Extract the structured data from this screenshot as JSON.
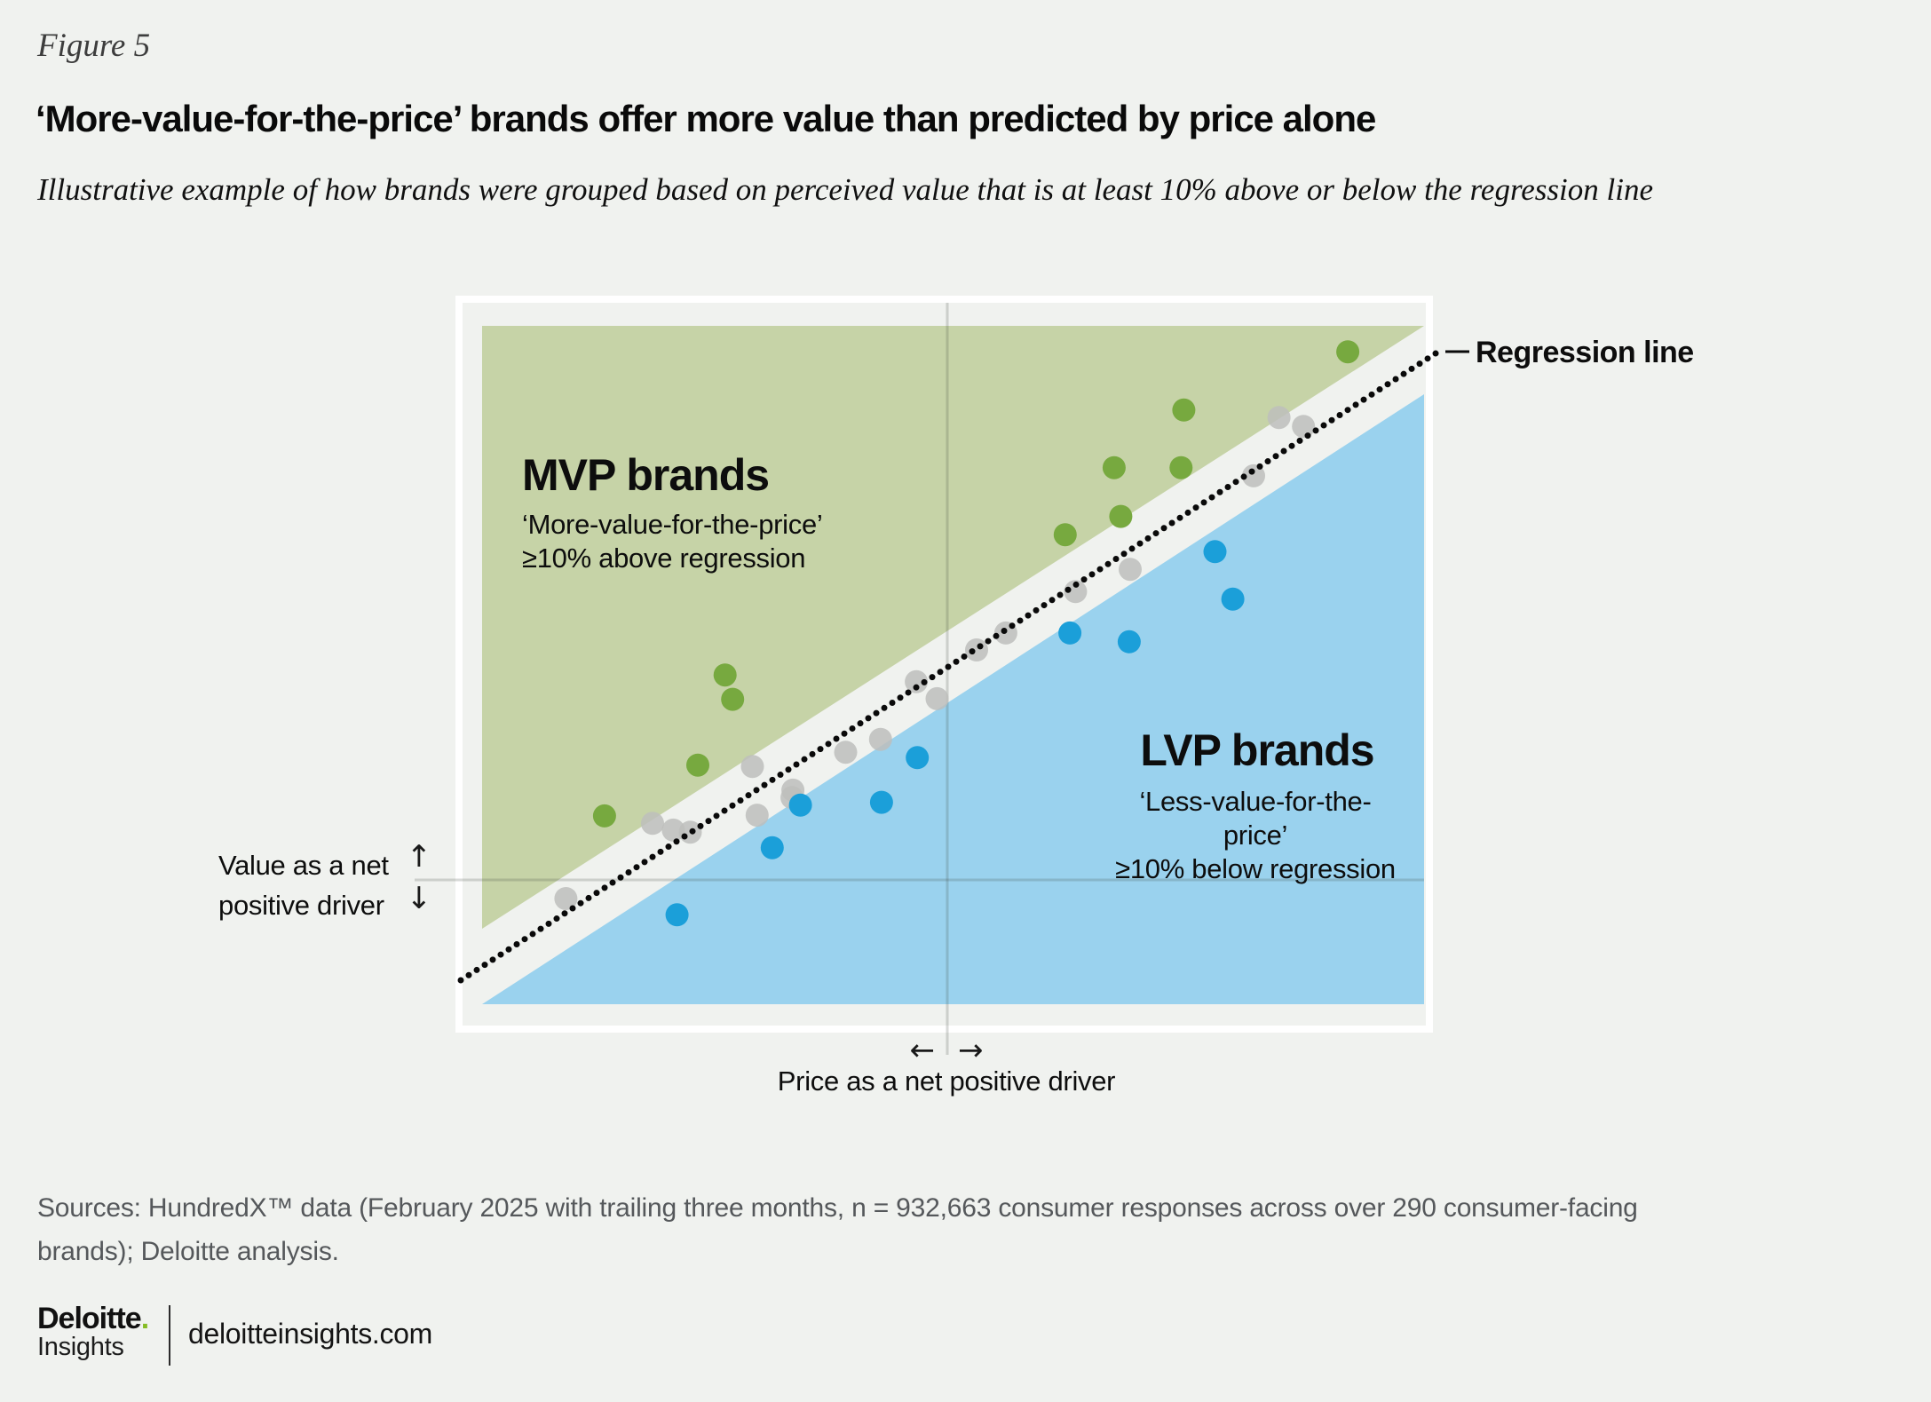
{
  "figure_label": "Figure 5",
  "title": "‘More-value-for-the-price’ brands offer more value than predicted by price alone",
  "subtitle": "Illustrative example of how brands were grouped based on perceived value that is at least 10% above or below the regression line",
  "chart": {
    "regression_label": "Regression line",
    "mvp": {
      "heading": "MVP brands",
      "sub1": "‘More-value-for-the-price’",
      "sub2": "≥10% above regression"
    },
    "lvp": {
      "heading": "LVP brands",
      "sub1": "‘Less-value-for-the-price’",
      "sub2": "≥10% below regression"
    },
    "y_axis": {
      "line1": "Value as a net",
      "line2": "positive driver",
      "up_arrow": "↑",
      "down_arrow": "↓"
    },
    "x_axis": {
      "label": "Price as a net positive driver",
      "left_arrow": "←",
      "right_arrow": "→"
    },
    "colors": {
      "mvp_region": "#c6d3a7",
      "lvp_region": "#9ad2ee",
      "mvp_dot": "#77a93f",
      "lvp_dot": "#1b9fd9",
      "neutral_dot": "#bdbebc",
      "regression": "#0a0a0a",
      "frame": "#ffffff",
      "background": "#f0f2ef"
    }
  },
  "chart_data": {
    "type": "scatter",
    "title": "‘More-value-for-the-price’ brands offer more value than predicted by price alone",
    "xlabel": "Price as a net positive driver",
    "ylabel": "Value as a net positive driver",
    "axes_numeric": false,
    "xlim": [
      0,
      1
    ],
    "ylim": [
      0,
      1
    ],
    "grid": false,
    "regression_line": {
      "start": [
        -0.0226,
        0.0354
      ],
      "end": [
        1.015,
        0.963
      ]
    },
    "series": [
      {
        "name": "Near regression line",
        "color": "#bdbebc",
        "points": [
          [
            0.287,
            0.351
          ],
          [
            0.33,
            0.316
          ],
          [
            0.329,
            0.305
          ],
          [
            0.292,
            0.279
          ],
          [
            0.181,
            0.267
          ],
          [
            0.203,
            0.257
          ],
          [
            0.221,
            0.254
          ],
          [
            0.089,
            0.156
          ],
          [
            0.386,
            0.372
          ],
          [
            0.423,
            0.391
          ],
          [
            0.461,
            0.476
          ],
          [
            0.483,
            0.451
          ],
          [
            0.525,
            0.523
          ],
          [
            0.556,
            0.548
          ],
          [
            0.63,
            0.609
          ],
          [
            0.688,
            0.642
          ],
          [
            0.819,
            0.78
          ],
          [
            0.846,
            0.866
          ],
          [
            0.872,
            0.853
          ]
        ]
      },
      {
        "name": "MVP brands (≥10% above regression)",
        "color": "#77a93f",
        "points": [
          [
            0.258,
            0.486
          ],
          [
            0.266,
            0.45
          ],
          [
            0.229,
            0.353
          ],
          [
            0.13,
            0.278
          ],
          [
            0.619,
            0.693
          ],
          [
            0.678,
            0.72
          ],
          [
            0.671,
            0.792
          ],
          [
            0.742,
            0.792
          ],
          [
            0.745,
            0.877
          ],
          [
            0.919,
            0.963
          ]
        ]
      },
      {
        "name": "LVP brands (≥10% below regression)",
        "color": "#1b9fd9",
        "points": [
          [
            0.338,
            0.294
          ],
          [
            0.308,
            0.231
          ],
          [
            0.207,
            0.132
          ],
          [
            0.462,
            0.364
          ],
          [
            0.424,
            0.298
          ],
          [
            0.624,
            0.548
          ],
          [
            0.687,
            0.535
          ],
          [
            0.778,
            0.668
          ],
          [
            0.797,
            0.598
          ]
        ]
      }
    ]
  },
  "sources": {
    "line1": "Sources: HundredX™ data (February 2025 with trailing three months, n = 932,663 consumer responses across over 290 consumer-facing",
    "line2": "brands); Deloitte analysis."
  },
  "footer": {
    "brand": "Deloitte",
    "brand_dot": ".",
    "sub": "Insights",
    "site": "deloitteinsights.com"
  }
}
